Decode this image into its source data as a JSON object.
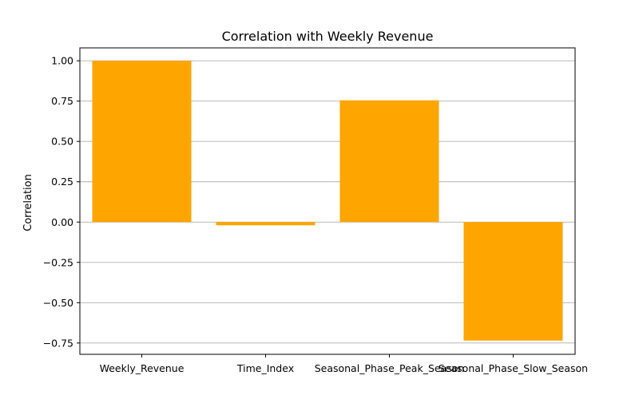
{
  "chart_data": {
    "type": "bar",
    "title": "Correlation with Weekly Revenue",
    "xlabel": "",
    "ylabel": "Correlation",
    "categories": [
      "Weekly_Revenue",
      "Time_Index",
      "Seasonal_Phase_Peak_Season",
      "Seasonal_Phase_Slow_Season"
    ],
    "values": [
      1.0,
      -0.02,
      0.755,
      -0.735
    ],
    "ylim": [
      -0.82,
      1.08
    ],
    "yticks": [
      -0.75,
      -0.5,
      -0.25,
      0.0,
      0.25,
      0.5,
      0.75,
      1.0
    ],
    "ytick_labels": [
      "−0.75",
      "−0.50",
      "−0.25",
      "0.00",
      "0.25",
      "0.50",
      "0.75",
      "1.00"
    ],
    "grid": "y",
    "bar_color": "#ffa500"
  }
}
